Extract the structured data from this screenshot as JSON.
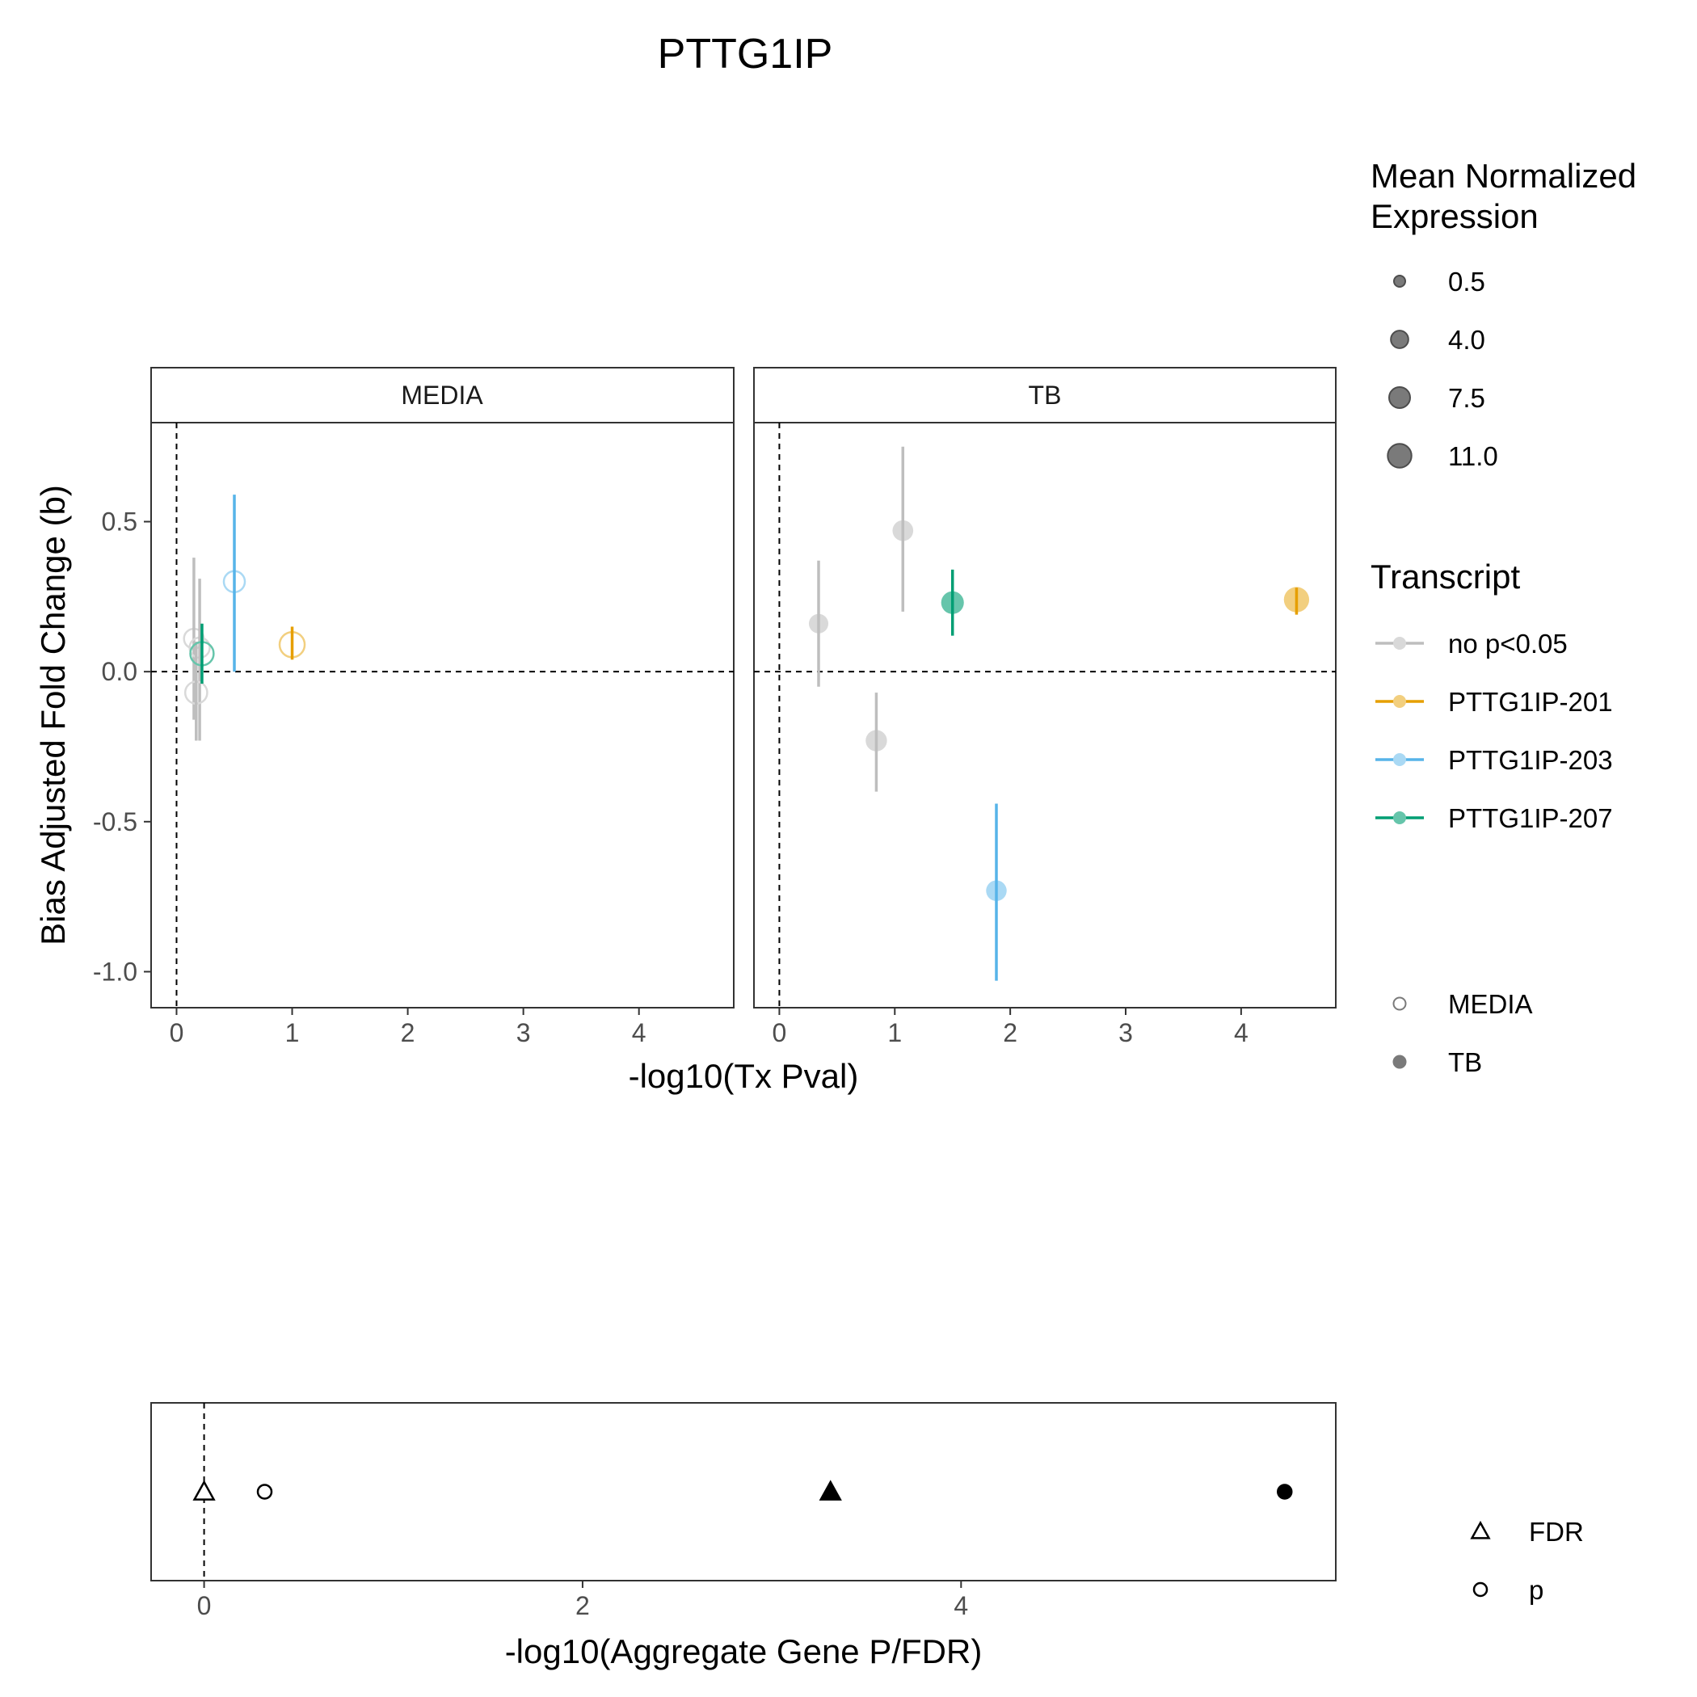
{
  "chart_data": [
    {
      "type": "scatter",
      "title": "PTTG1IP",
      "xlabel": "-log10(Tx Pval)",
      "ylabel": "Bias Adjusted Fold Change (b)",
      "xlim": [
        -0.22,
        4.82
      ],
      "ylim": [
        -1.12,
        0.83
      ],
      "xticks": [
        "0",
        "1",
        "2",
        "3",
        "4"
      ],
      "yticks": [
        "-1.0",
        "-0.5",
        "0.0",
        "0.5"
      ],
      "xtick_values": [
        0,
        1,
        2,
        3,
        4
      ],
      "ytick_values": [
        -1.0,
        -0.5,
        0.0,
        0.5
      ],
      "reference_lines": {
        "x": 0,
        "y": 0
      },
      "grid": false,
      "facets": [
        {
          "name": "MEDIA",
          "fill": "open",
          "points": [
            {
              "transcript": "no p<0.05",
              "x": 0.15,
              "y": 0.11,
              "ymin": -0.16,
              "ymax": 0.38,
              "expr": 3.0
            },
            {
              "transcript": "no p<0.05",
              "x": 0.2,
              "y": 0.08,
              "ymin": -0.23,
              "ymax": 0.31,
              "expr": 3.2
            },
            {
              "transcript": "no p<0.05",
              "x": 0.17,
              "y": -0.07,
              "ymin": -0.23,
              "ymax": 0.1,
              "expr": 4.5
            },
            {
              "transcript": "PTTG1IP-207",
              "x": 0.22,
              "y": 0.06,
              "ymin": -0.04,
              "ymax": 0.16,
              "expr": 5.5
            },
            {
              "transcript": "PTTG1IP-203",
              "x": 0.5,
              "y": 0.3,
              "ymin": 0.0,
              "ymax": 0.59,
              "expr": 3.8
            },
            {
              "transcript": "PTTG1IP-201",
              "x": 1.0,
              "y": 0.09,
              "ymin": 0.04,
              "ymax": 0.15,
              "expr": 7.0
            }
          ]
        },
        {
          "name": "TB",
          "fill": "filled",
          "points": [
            {
              "transcript": "no p<0.05",
              "x": 0.34,
              "y": 0.16,
              "ymin": -0.05,
              "ymax": 0.37,
              "expr": 2.8
            },
            {
              "transcript": "no p<0.05",
              "x": 1.07,
              "y": 0.47,
              "ymin": 0.2,
              "ymax": 0.75,
              "expr": 3.6
            },
            {
              "transcript": "no p<0.05",
              "x": 0.84,
              "y": -0.23,
              "ymin": -0.4,
              "ymax": -0.07,
              "expr": 4.0
            },
            {
              "transcript": "PTTG1IP-207",
              "x": 1.5,
              "y": 0.23,
              "ymin": 0.12,
              "ymax": 0.34,
              "expr": 5.0
            },
            {
              "transcript": "PTTG1IP-203",
              "x": 1.88,
              "y": -0.73,
              "ymin": -1.03,
              "ymax": -0.44,
              "expr": 3.5
            },
            {
              "transcript": "PTTG1IP-201",
              "x": 4.48,
              "y": 0.24,
              "ymin": 0.19,
              "ymax": 0.28,
              "expr": 7.2
            }
          ]
        }
      ]
    },
    {
      "type": "scatter",
      "xlabel": "-log10(Aggregate Gene P/FDR)",
      "xlim": [
        -0.28,
        5.98
      ],
      "xticks": [
        "0",
        "2",
        "4"
      ],
      "xtick_values": [
        0,
        2,
        4
      ],
      "reference_lines": {
        "x": 0
      },
      "points": [
        {
          "condition": "MEDIA",
          "metric": "FDR",
          "x": 0.0
        },
        {
          "condition": "MEDIA",
          "metric": "p",
          "x": 0.32
        },
        {
          "condition": "TB",
          "metric": "FDR",
          "x": 3.31
        },
        {
          "condition": "TB",
          "metric": "p",
          "x": 5.71
        }
      ]
    }
  ],
  "legends": {
    "size": {
      "title_lines": [
        "Mean Normalized",
        "Expression"
      ],
      "entries": [
        {
          "label": "0.5",
          "value": 0.5
        },
        {
          "label": "4.0",
          "value": 4.0
        },
        {
          "label": "7.5",
          "value": 7.5
        },
        {
          "label": "11.0",
          "value": 11.0
        }
      ]
    },
    "color": {
      "title": "Transcript",
      "entries": [
        {
          "label": "no p<0.05",
          "color": "#BEBEBE",
          "point_color": "#D9D9D9"
        },
        {
          "label": "PTTG1IP-201",
          "color": "#E69F00",
          "point_color": "#F2CF7F"
        },
        {
          "label": "PTTG1IP-203",
          "color": "#56B4E9",
          "point_color": "#AAD9F4"
        },
        {
          "label": "PTTG1IP-207",
          "color": "#009E73",
          "point_color": "#66C5AB"
        }
      ]
    },
    "fill": {
      "entries": [
        {
          "label": "MEDIA",
          "filled": false
        },
        {
          "label": "TB",
          "filled": true
        }
      ]
    },
    "shape": {
      "entries": [
        {
          "label": "FDR",
          "shape": "triangle"
        },
        {
          "label": "p",
          "shape": "circle"
        }
      ]
    }
  }
}
